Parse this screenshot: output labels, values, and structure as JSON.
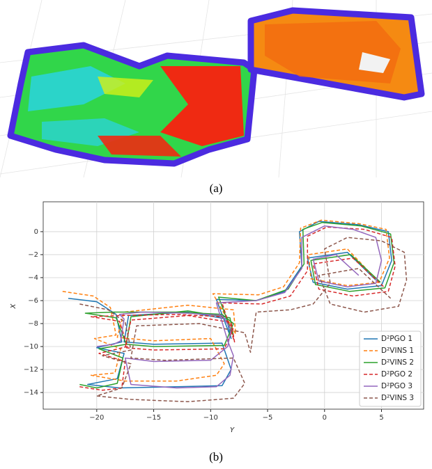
{
  "figure": {
    "caption_a": "(a)",
    "caption_b": "(b)"
  },
  "chart_data": {
    "type": "line",
    "xlabel": "Y",
    "ylabel": "X",
    "xlim": [
      -24.7,
      8.7
    ],
    "ylim": [
      -15.45,
      2.6
    ],
    "grid": true,
    "legend": "lower right",
    "xticks": [
      {
        "value": -20,
        "label": "−20"
      },
      {
        "value": -15,
        "label": "−15"
      },
      {
        "value": -10,
        "label": "−10"
      },
      {
        "value": -5,
        "label": "−5"
      },
      0,
      5
    ],
    "yticks": [
      0,
      {
        "value": -2,
        "label": "−2"
      },
      {
        "value": -4,
        "label": "−4"
      },
      {
        "value": -6,
        "label": "−6"
      },
      {
        "value": -8,
        "label": "−8"
      },
      {
        "value": -10,
        "label": "−10"
      },
      {
        "value": -12,
        "label": "−12"
      },
      {
        "value": -14,
        "label": "−14"
      }
    ],
    "series": [
      {
        "name": "D²PGO 1",
        "color": "#1f77b4",
        "dashed": false,
        "x": [
          -22.5,
          -20,
          -18.3,
          -17.8,
          -20,
          -17.6,
          -18.2,
          -20.8,
          -18,
          -13,
          -9,
          -8.2,
          -9,
          -15,
          -17.6,
          -17.2,
          -12,
          -8.6,
          -8.2,
          -9.5,
          -6,
          -3.5,
          -2,
          -2.2,
          -0.5,
          3,
          5.6,
          5.9,
          5,
          2,
          -1,
          -1.5,
          2,
          4.5
        ],
        "values": [
          -5.8,
          -6.1,
          -7.2,
          -9.6,
          -10.1,
          -10.6,
          -12.8,
          -13.3,
          -13.6,
          -13.5,
          -13.4,
          -12,
          -9.7,
          -9.8,
          -9.6,
          -7.3,
          -7.0,
          -7.6,
          -9.3,
          -5.9,
          -6.0,
          -5.2,
          -3,
          0,
          0.9,
          0.6,
          0,
          -2.5,
          -4.7,
          -5,
          -4.4,
          -2.3,
          -1.8,
          -4.2
        ]
      },
      {
        "name": "D²VINS 1",
        "color": "#ff7f0e",
        "dashed": true,
        "x": [
          -23,
          -20.3,
          -18.8,
          -18.3,
          -20.2,
          -17.9,
          -18.4,
          -20.5,
          -17.5,
          -13,
          -9.5,
          -8.8,
          -10,
          -15,
          -18.2,
          -17.6,
          -12,
          -8,
          -7.8,
          -9.8,
          -5.8,
          -3.6,
          -2.2,
          -2.1,
          -0.3,
          3,
          5.4,
          5.7,
          4.8,
          2,
          -1.2,
          -1.4,
          2,
          4.3
        ],
        "values": [
          -5.2,
          -5.6,
          -6.6,
          -9.0,
          -9.3,
          -10.2,
          -12.3,
          -12.5,
          -13.0,
          -13.0,
          -12.5,
          -11.5,
          -9.3,
          -9.5,
          -9.2,
          -7.0,
          -6.4,
          -6.8,
          -8.9,
          -5.4,
          -5.5,
          -4.8,
          -2.7,
          0.3,
          1.0,
          0.7,
          0.2,
          -2.3,
          -4.4,
          -4.7,
          -4.1,
          -2.0,
          -1.5,
          -3.9
        ]
      },
      {
        "name": "D²VINS 2",
        "color": "#2ca02c",
        "dashed": false,
        "x": [
          -21.5,
          -20,
          -18.2,
          -17.7,
          -19.8,
          -17.4,
          -18.3,
          -21,
          -18.5,
          -13,
          -9,
          -8,
          -8.8,
          -15,
          -17.4,
          -17,
          -12,
          -8.3,
          -8,
          -9.3,
          -6,
          -3.2,
          -1.8,
          -1.9,
          -0.2,
          3.2,
          5.8,
          6.1,
          5.3,
          2.2,
          -0.8,
          -1.2,
          2.3,
          4.9
        ],
        "values": [
          -13.3,
          -13.6,
          -13.2,
          -11.0,
          -10.2,
          -9.8,
          -7.5,
          -7.1,
          -7.0,
          -7.0,
          -7.2,
          -8.0,
          -9.9,
          -10.0,
          -9.8,
          -7.4,
          -6.9,
          -7.5,
          -9.1,
          -5.7,
          -6.0,
          -5.0,
          -2.8,
          0.2,
          0.8,
          0.5,
          -0.2,
          -2.7,
          -4.9,
          -5.2,
          -4.6,
          -2.5,
          -2.0,
          -4.4
        ]
      },
      {
        "name": "D²PGO 2",
        "color": "#d62728",
        "dashed": true,
        "x": [
          -21.5,
          -19.5,
          -17.8,
          -17.5,
          -19.8,
          -17.3,
          -18,
          -20.5,
          -17.8,
          -13,
          -9,
          -8,
          -8.8,
          -15,
          -17.5,
          -17,
          -12,
          -8.2,
          -7.9,
          -9,
          -5.5,
          -3,
          -1.5,
          -1.5,
          0.2,
          3.5,
          5.9,
          6.2,
          5.6,
          2.5,
          -0.5,
          -1,
          2.5,
          5.2
        ],
        "values": [
          -13.5,
          -13.8,
          -13.6,
          -11.3,
          -10.6,
          -10.0,
          -7.8,
          -7.4,
          -7.3,
          -7.2,
          -7.4,
          -8.4,
          -10.2,
          -10.3,
          -10.1,
          -7.7,
          -7.3,
          -7.9,
          -9.6,
          -6.2,
          -6.3,
          -5.6,
          -3.4,
          -0.4,
          0.4,
          0.2,
          -0.5,
          -3.0,
          -5.2,
          -5.6,
          -5.0,
          -2.8,
          -2.3,
          -4.8
        ]
      },
      {
        "name": "D²PGO 3",
        "color": "#9467bd",
        "dashed": false,
        "x": [
          -20,
          -18.5,
          -17.9,
          -17.6,
          -18,
          -16,
          -12,
          -9,
          -8.2,
          -8.5,
          -10,
          -15,
          -17.5,
          -17,
          -13,
          -9.5,
          -8.3,
          -8,
          -8.5,
          -9.5,
          -6,
          -3.5,
          -2,
          -2,
          0,
          2.5,
          4.5,
          5,
          4.5,
          2,
          -0.5,
          -1,
          1,
          3
        ],
        "values": [
          -10.0,
          -9.8,
          -9.5,
          -7.6,
          -7.2,
          -7.0,
          -7.1,
          -7.3,
          -8.5,
          -10,
          -11.2,
          -11.3,
          -11.0,
          -13.3,
          -13.6,
          -13.5,
          -12.5,
          -10.8,
          -9.5,
          -6.2,
          -6.0,
          -5.3,
          -3.2,
          -0.5,
          0.5,
          0.2,
          -0.5,
          -2.5,
          -4.5,
          -4.8,
          -4.3,
          -2.4,
          -2.0,
          -3.8
        ]
      },
      {
        "name": "D²VINS 3",
        "color": "#8c564b",
        "dashed": true,
        "x": [
          -21.5,
          -19,
          -17.5,
          -17,
          -19.5,
          -17,
          -17.8,
          -20,
          -17,
          -12,
          -8,
          -7,
          -8,
          -14,
          -17,
          -16.5,
          -11,
          -7,
          -6.5,
          -6,
          -3,
          -1,
          0.5,
          0,
          2,
          5,
          7,
          7.2,
          6.5,
          3.5,
          0.5,
          -0.5,
          3,
          5.8
        ],
        "values": [
          -6.3,
          -6.8,
          -7.9,
          -10.3,
          -10.8,
          -11.5,
          -13.6,
          -14.3,
          -14.6,
          -14.8,
          -14.5,
          -13.2,
          -11.0,
          -11.2,
          -11.0,
          -8.2,
          -8.0,
          -8.8,
          -10.5,
          -7.0,
          -6.8,
          -6.3,
          -4.5,
          -1.5,
          -0.5,
          -0.8,
          -1.8,
          -4.2,
          -6.5,
          -7.0,
          -6.3,
          -3.8,
          -3.2,
          -5.8
        ]
      }
    ]
  }
}
